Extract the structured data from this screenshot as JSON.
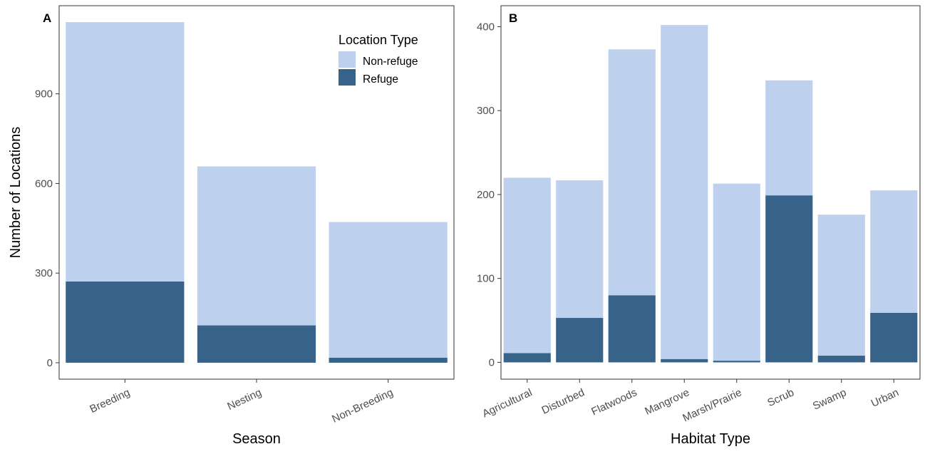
{
  "colors": {
    "non_refuge": "#bdd1ee",
    "refuge": "#37638a",
    "frame": "#333333",
    "tick": "#4d4d4d"
  },
  "legend": {
    "title": "Location Type",
    "items": [
      {
        "label": "Non-refuge",
        "color": "#bdd1ee"
      },
      {
        "label": "Refuge",
        "color": "#37638a"
      }
    ]
  },
  "chart_data": [
    {
      "type": "bar",
      "stacked": true,
      "panel_label": "A",
      "xlabel": "Season",
      "ylabel": "Number of Locations",
      "categories": [
        "Breeding",
        "Nesting",
        "Non-Breeding"
      ],
      "series": [
        {
          "name": "Refuge",
          "values": [
            272,
            125,
            17
          ]
        },
        {
          "name": "Non-refuge",
          "values": [
            868,
            532,
            454
          ]
        }
      ],
      "yticks": [
        0,
        300,
        600,
        900
      ],
      "ylim": [
        -55,
        1195
      ]
    },
    {
      "type": "bar",
      "stacked": true,
      "panel_label": "B",
      "xlabel": "Habitat Type",
      "ylabel": "",
      "categories": [
        "Agricultural",
        "Disturbed",
        "Flatwoods",
        "Mangrove",
        "Marsh/Prairie",
        "Scrub",
        "Swamp",
        "Urban"
      ],
      "series": [
        {
          "name": "Refuge",
          "values": [
            11,
            53,
            80,
            4,
            2,
            199,
            8,
            59
          ]
        },
        {
          "name": "Non-refuge",
          "values": [
            209,
            164,
            293,
            398,
            211,
            137,
            168,
            146
          ]
        }
      ],
      "yticks": [
        0,
        100,
        200,
        300,
        400
      ],
      "ylim": [
        -20,
        425
      ]
    }
  ]
}
